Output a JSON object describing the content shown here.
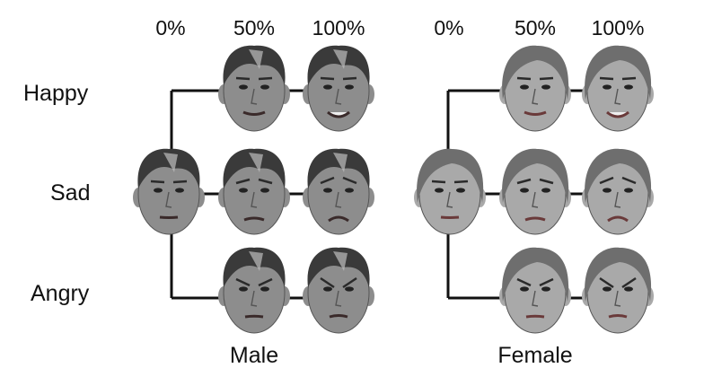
{
  "intensity_labels": [
    "0%",
    "50%",
    "100%"
  ],
  "emotions": [
    "Happy",
    "Sad",
    "Angry"
  ],
  "panels": [
    {
      "group_label": "Male",
      "sex": "male",
      "faces": [
        {
          "emotion": "Neutral",
          "intensity": "0%"
        },
        {
          "emotion": "Happy",
          "intensity": "50%"
        },
        {
          "emotion": "Happy",
          "intensity": "100%"
        },
        {
          "emotion": "Sad",
          "intensity": "50%"
        },
        {
          "emotion": "Sad",
          "intensity": "100%"
        },
        {
          "emotion": "Angry",
          "intensity": "50%"
        },
        {
          "emotion": "Angry",
          "intensity": "100%"
        }
      ]
    },
    {
      "group_label": "Female",
      "sex": "female",
      "faces": [
        {
          "emotion": "Neutral",
          "intensity": "0%"
        },
        {
          "emotion": "Happy",
          "intensity": "50%"
        },
        {
          "emotion": "Happy",
          "intensity": "100%"
        },
        {
          "emotion": "Sad",
          "intensity": "50%"
        },
        {
          "emotion": "Sad",
          "intensity": "100%"
        },
        {
          "emotion": "Angry",
          "intensity": "50%"
        },
        {
          "emotion": "Angry",
          "intensity": "100%"
        }
      ]
    }
  ],
  "colors": {
    "line": "#111111",
    "male_skin": "#8d8d8d",
    "male_hair": "#3a3a3a",
    "female_skin": "#a9a9a9",
    "female_hair": "#6e6e6e"
  }
}
